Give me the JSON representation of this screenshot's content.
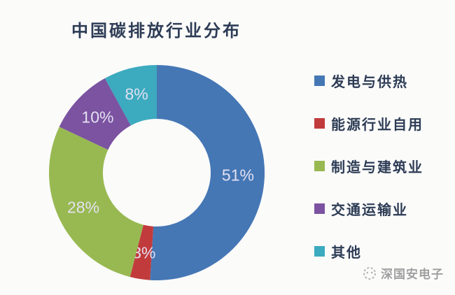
{
  "title": "中国碳排放行业分布",
  "chart_data": {
    "type": "pie",
    "subtype": "donut",
    "title": "中国碳排放行业分布",
    "categories": [
      "发电与供热",
      "能源行业自用",
      "制造与建筑业",
      "交通运输业",
      "其他"
    ],
    "values": [
      51,
      3,
      28,
      10,
      8
    ],
    "labels": [
      "51%",
      "3%",
      "28%",
      "10%",
      "8%"
    ],
    "colors": [
      "#4577b5",
      "#c23b3c",
      "#98b951",
      "#7b53a1",
      "#3caabf"
    ],
    "start_angle_deg": 0,
    "direction": "clockwise",
    "donut_hole_ratio": 0.5,
    "legend_position": "right",
    "slice_label_color": "#e4e1f2"
  },
  "legend": {
    "items": [
      {
        "label": "发电与供热",
        "color": "#4577b5"
      },
      {
        "label": "能源行业自用",
        "color": "#c23b3c"
      },
      {
        "label": "制造与建筑业",
        "color": "#98b951"
      },
      {
        "label": "交通运输业",
        "color": "#7b53a1"
      },
      {
        "label": "其他",
        "color": "#3caabf"
      }
    ]
  },
  "watermark": {
    "text": "深国安电子"
  }
}
